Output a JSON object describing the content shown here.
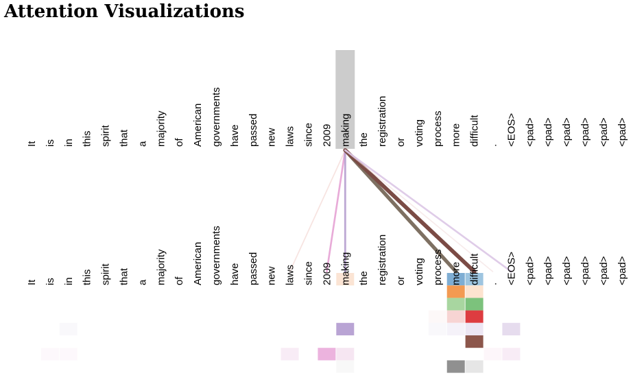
{
  "page": {
    "title": "Attention Visualizations"
  },
  "tokens": [
    "It",
    "is",
    "in",
    "this",
    "spirit",
    "that",
    "a",
    "majority",
    "of",
    "American",
    "governments",
    "have",
    "passed",
    "new",
    "laws",
    "since",
    "2009",
    "making",
    "the",
    "registration",
    "or",
    "voting",
    "process",
    "more",
    "difficult",
    ".",
    "<EOS>",
    "<pad>",
    "<pad>",
    "<pad>",
    "<pad>",
    "<pad>",
    "<pad>"
  ],
  "selected_index": 17,
  "highlight_color": "#cccccc",
  "attention_heads": [
    {
      "name": "head-1",
      "color": "#1f77b4"
    },
    {
      "name": "head-2",
      "color": "#ff7f0e"
    },
    {
      "name": "head-3",
      "color": "#2ca02c"
    },
    {
      "name": "head-4",
      "color": "#d62728"
    },
    {
      "name": "head-5",
      "color": "#9467bd"
    },
    {
      "name": "head-6",
      "color": "#8c564b"
    },
    {
      "name": "head-7",
      "color": "#e377c2"
    },
    {
      "name": "head-8",
      "color": "#7f7f7f"
    }
  ],
  "attention_lines": [
    {
      "to": 14,
      "color": "#f4d8d4",
      "opacity": 0.7,
      "weight": 0.12
    },
    {
      "to": 16,
      "color": "#e6a2d4",
      "opacity": 0.9,
      "weight": 0.3
    },
    {
      "to": 17,
      "color": "#b7a0cf",
      "opacity": 0.9,
      "weight": 0.35
    },
    {
      "to": 23,
      "color": "#7e7062",
      "opacity": 1.0,
      "weight": 0.85
    },
    {
      "to": 24,
      "color": "#7b4b45",
      "opacity": 1.0,
      "weight": 0.95
    },
    {
      "to": 25,
      "color": "#f2dede",
      "opacity": 0.6,
      "weight": 0.1
    },
    {
      "to": 26,
      "color": "#dcc7e6",
      "opacity": 0.9,
      "weight": 0.3
    }
  ],
  "attention_cells": [
    {
      "col": 17,
      "row": 0,
      "color": "#fbe4d4"
    },
    {
      "col": 23,
      "row": 0,
      "color": "#7eadd3"
    },
    {
      "col": 24,
      "row": 0,
      "color": "#9ec5e0"
    },
    {
      "col": 23,
      "row": 1,
      "color": "#f39a52"
    },
    {
      "col": 24,
      "row": 1,
      "color": "#fde3cf"
    },
    {
      "col": 23,
      "row": 2,
      "color": "#a8d6a0"
    },
    {
      "col": 24,
      "row": 2,
      "color": "#7cc27c"
    },
    {
      "col": 22,
      "row": 3,
      "color": "#fdf8f8"
    },
    {
      "col": 23,
      "row": 3,
      "color": "#f7d4d3"
    },
    {
      "col": 24,
      "row": 3,
      "color": "#dd3c40"
    },
    {
      "col": 2,
      "row": 4,
      "color": "#f9f8fb"
    },
    {
      "col": 17,
      "row": 4,
      "color": "#b9a4d4"
    },
    {
      "col": 22,
      "row": 4,
      "color": "#f9f8fb"
    },
    {
      "col": 23,
      "row": 4,
      "color": "#f5f2f9"
    },
    {
      "col": 24,
      "row": 4,
      "color": "#ece6f3"
    },
    {
      "col": 26,
      "row": 4,
      "color": "#e6dcee"
    },
    {
      "col": 24,
      "row": 5,
      "color": "#8c564b"
    },
    {
      "col": 1,
      "row": 6,
      "color": "#fdf8fc"
    },
    {
      "col": 2,
      "row": 6,
      "color": "#fdf8fc"
    },
    {
      "col": 14,
      "row": 6,
      "color": "#f8ecf6"
    },
    {
      "col": 16,
      "row": 6,
      "color": "#ecb3de"
    },
    {
      "col": 17,
      "row": 6,
      "color": "#f6e6f2"
    },
    {
      "col": 25,
      "row": 6,
      "color": "#fdf6fa"
    },
    {
      "col": 26,
      "row": 6,
      "color": "#f8ecf6"
    },
    {
      "col": 17,
      "row": 7,
      "color": "#f8f8f8"
    },
    {
      "col": 23,
      "row": 7,
      "color": "#909090"
    },
    {
      "col": 24,
      "row": 7,
      "color": "#e6e6e6"
    }
  ]
}
